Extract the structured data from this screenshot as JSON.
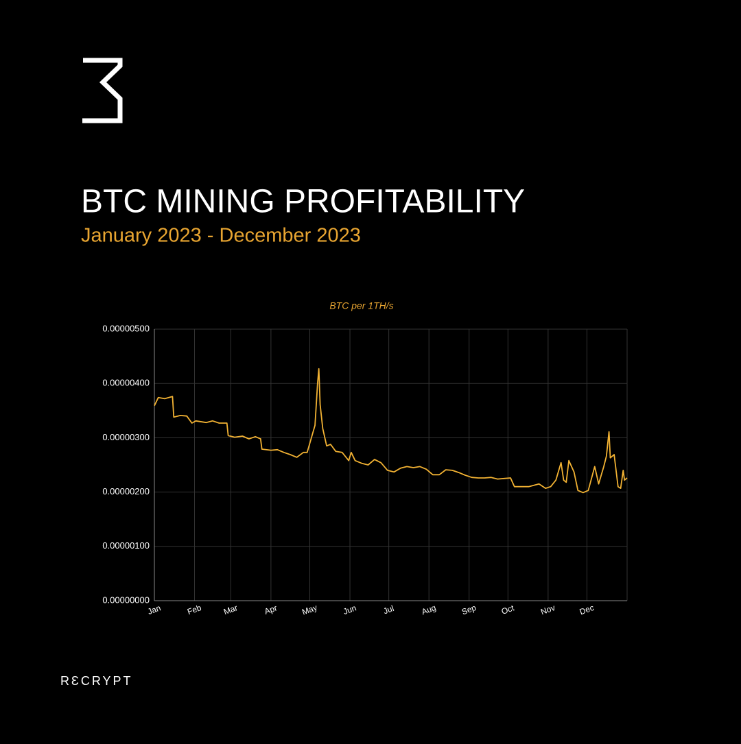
{
  "brand": "RƐCRYPT",
  "chart_data": {
    "type": "line",
    "title": "BTC MINING PROFITABILITY",
    "subtitle": "January 2023 - December 2023",
    "x": [
      0,
      3,
      8,
      14,
      15,
      20,
      25,
      29,
      32,
      40,
      45,
      50,
      56,
      57,
      62,
      68,
      73,
      78,
      82,
      83,
      90,
      95,
      100,
      105,
      110,
      115,
      118,
      121,
      124,
      126,
      127,
      128,
      130,
      133,
      136,
      140,
      145,
      150,
      152,
      155,
      160,
      165,
      170,
      175,
      180,
      185,
      190,
      195,
      200,
      205,
      210,
      215,
      220,
      225,
      230,
      235,
      240,
      245,
      250,
      255,
      260,
      265,
      270,
      275,
      278,
      289,
      297,
      302,
      306,
      310,
      314,
      316,
      318,
      320,
      324,
      327,
      331,
      335,
      340,
      343,
      347,
      349,
      351,
      352,
      355,
      358,
      360,
      362,
      363,
      365
    ],
    "series": [
      {
        "name": "BTC per 1TH/s",
        "color": "#f2b233",
        "values": [
          3.59e-06,
          3.74e-06,
          3.72e-06,
          3.76e-06,
          3.38e-06,
          3.41e-06,
          3.4e-06,
          3.27e-06,
          3.31e-06,
          3.28e-06,
          3.31e-06,
          3.27e-06,
          3.27e-06,
          3.04e-06,
          3.01e-06,
          3.03e-06,
          2.98e-06,
          3.02e-06,
          2.98e-06,
          2.79e-06,
          2.77e-06,
          2.78e-06,
          2.73e-06,
          2.69e-06,
          2.64e-06,
          2.73e-06,
          2.73e-06,
          2.98e-06,
          3.23e-06,
          3.99e-06,
          4.27e-06,
          3.61e-06,
          3.17e-06,
          2.85e-06,
          2.88e-06,
          2.75e-06,
          2.73e-06,
          2.58e-06,
          2.73e-06,
          2.58e-06,
          2.53e-06,
          2.5e-06,
          2.6e-06,
          2.54e-06,
          2.4e-06,
          2.37e-06,
          2.44e-06,
          2.47e-06,
          2.45e-06,
          2.47e-06,
          2.42e-06,
          2.32e-06,
          2.32e-06,
          2.41e-06,
          2.4e-06,
          2.36e-06,
          2.31e-06,
          2.27e-06,
          2.26e-06,
          2.26e-06,
          2.27e-06,
          2.24e-06,
          2.25e-06,
          2.26e-06,
          2.1e-06,
          2.1e-06,
          2.15e-06,
          2.07e-06,
          2.1e-06,
          2.22e-06,
          2.54e-06,
          2.22e-06,
          2.18e-06,
          2.58e-06,
          2.37e-06,
          2.03e-06,
          1.99e-06,
          2.03e-06,
          2.47e-06,
          2.15e-06,
          2.47e-06,
          2.66e-06,
          3.11e-06,
          2.63e-06,
          2.69e-06,
          2.1e-06,
          2.07e-06,
          2.4e-06,
          2.22e-06,
          2.26e-06
        ]
      }
    ],
    "xlim": [
      0,
      365
    ],
    "xticks": [
      {
        "value": 0,
        "label": "Jan"
      },
      {
        "value": 31,
        "label": "Feb"
      },
      {
        "value": 59,
        "label": "Mar"
      },
      {
        "value": 90,
        "label": "Apr"
      },
      {
        "value": 120,
        "label": "May"
      },
      {
        "value": 151,
        "label": "Jun"
      },
      {
        "value": 181,
        "label": "Jul"
      },
      {
        "value": 212,
        "label": "Aug"
      },
      {
        "value": 243,
        "label": "Sep"
      },
      {
        "value": 273,
        "label": "Oct"
      },
      {
        "value": 304,
        "label": "Nov"
      },
      {
        "value": 334,
        "label": "Dec"
      }
    ],
    "ylim": [
      0,
      5e-06
    ],
    "yticks": [
      {
        "value": 0,
        "label": "0.00000000"
      },
      {
        "value": 1e-06,
        "label": "0.00000100"
      },
      {
        "value": 2e-06,
        "label": "0.00000200"
      },
      {
        "value": 3e-06,
        "label": "0.00000300"
      },
      {
        "value": 4e-06,
        "label": "0.00000400"
      },
      {
        "value": 5e-06,
        "label": "0.00000500"
      }
    ],
    "grid": true
  }
}
